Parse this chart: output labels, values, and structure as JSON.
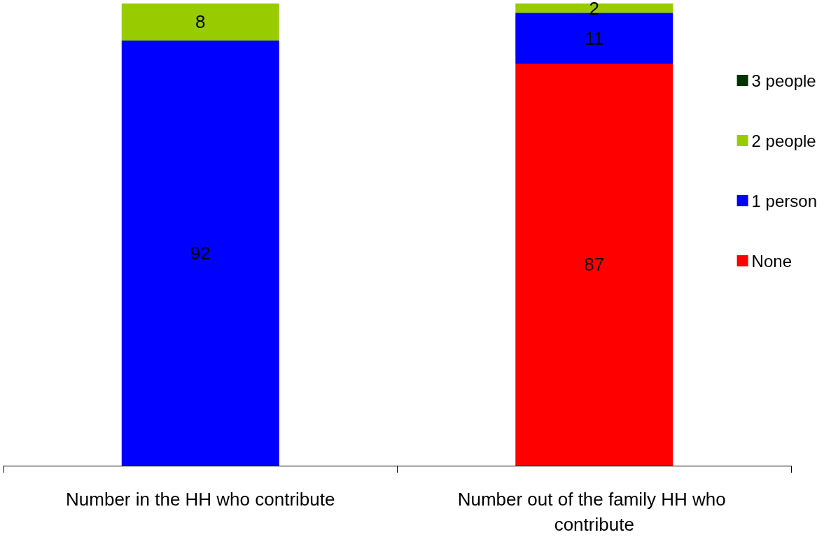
{
  "chart_data": {
    "type": "bar",
    "stacked": true,
    "categories": [
      "Number in the HH who contribute",
      "Number out of the family HH who contribute"
    ],
    "ylim": [
      0,
      100
    ],
    "tick_labels": "x",
    "legend": "right",
    "series": [
      {
        "name": "None",
        "color": "#ff0000",
        "values": [
          null,
          87
        ],
        "value_labels": [
          null,
          "87"
        ]
      },
      {
        "name": "1 person",
        "color": "#0000ff",
        "values": [
          92,
          11
        ],
        "value_labels": [
          "92",
          "11"
        ]
      },
      {
        "name": "2 people",
        "color": "#99cc00",
        "values": [
          8,
          2
        ],
        "value_labels": [
          "8",
          "2"
        ]
      },
      {
        "name": "3 people",
        "color": "#003300",
        "values": [
          null,
          null
        ],
        "value_labels": [
          null,
          null
        ]
      }
    ]
  }
}
